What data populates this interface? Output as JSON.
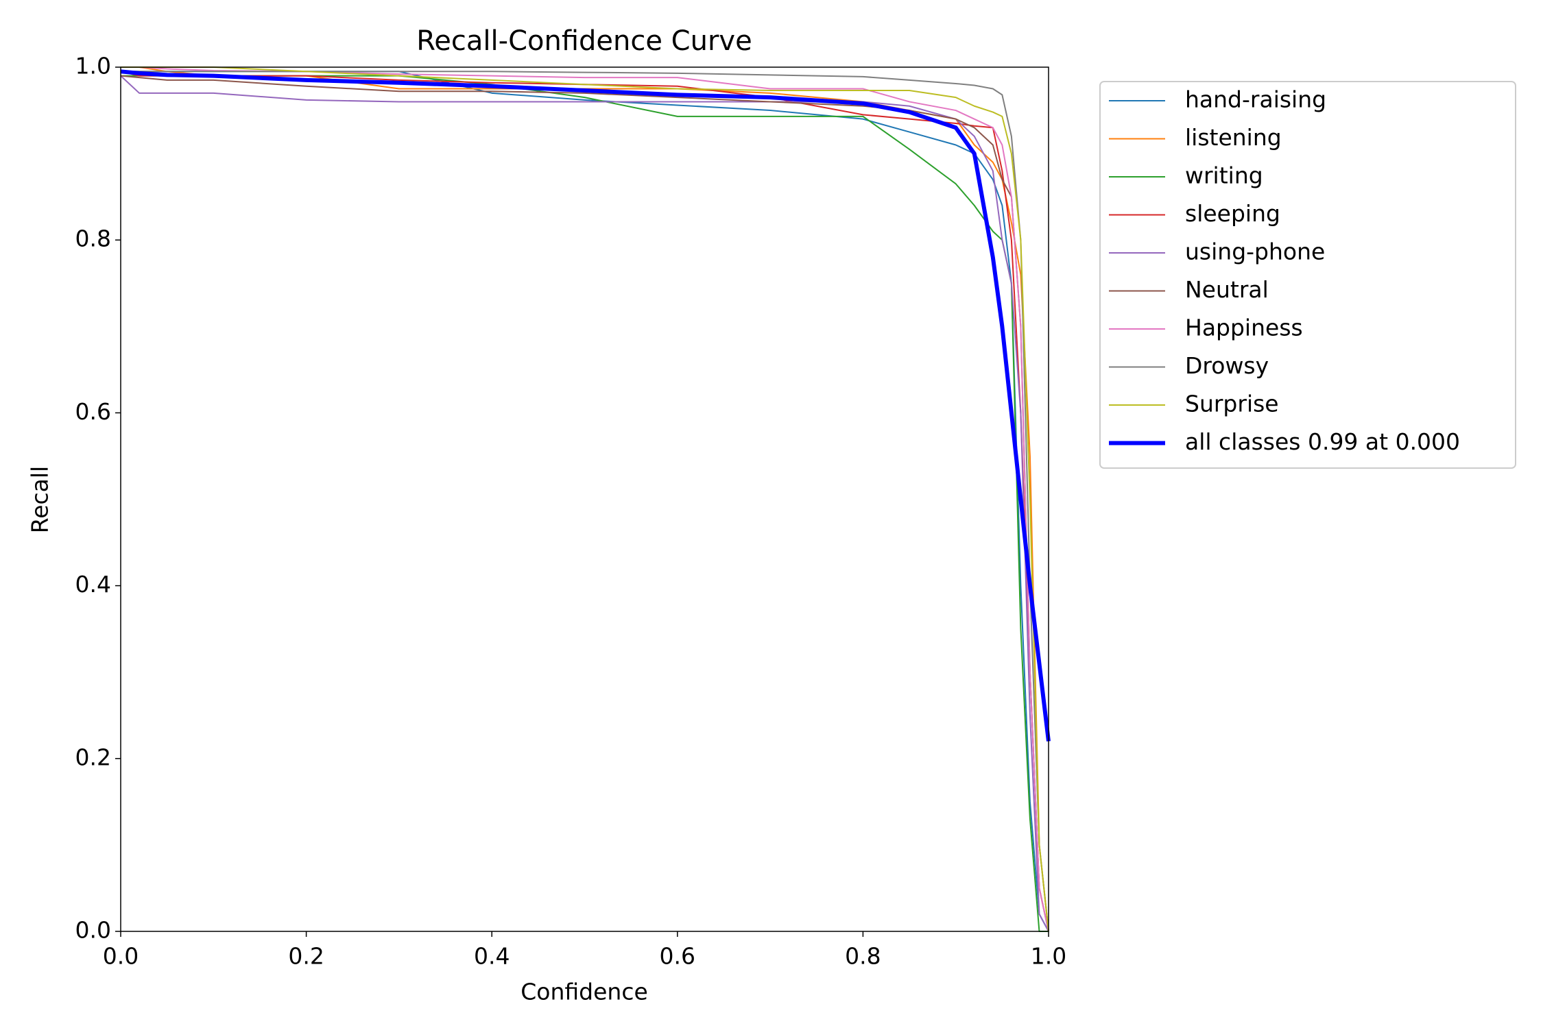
{
  "chart_data": {
    "type": "line",
    "title": "Recall-Confidence Curve",
    "x_label": "Confidence",
    "y_label": "Recall",
    "x": [
      0,
      0.02,
      0.05,
      0.1,
      0.2,
      0.3,
      0.4,
      0.5,
      0.6,
      0.7,
      0.8,
      0.85,
      0.9,
      0.92,
      0.94,
      0.95,
      0.96,
      0.97,
      0.98,
      0.99,
      1.0
    ],
    "series": [
      {
        "name": "hand-raising",
        "color": "#1f77b4",
        "width": 1,
        "values": [
          0.995,
          0.995,
          0.995,
          0.995,
          0.995,
          0.995,
          0.97,
          0.962,
          0.956,
          0.95,
          0.94,
          0.925,
          0.91,
          0.9,
          0.87,
          0.84,
          0.75,
          0.4,
          0.15,
          0.02,
          0
        ]
      },
      {
        "name": "listening",
        "color": "#ff7f0e",
        "width": 1,
        "values": [
          1,
          1,
          0.995,
          0.99,
          0.99,
          0.975,
          0.975,
          0.975,
          0.975,
          0.97,
          0.96,
          0.95,
          0.94,
          0.91,
          0.89,
          0.87,
          0.82,
          0.76,
          0.55,
          0.1,
          0
        ]
      },
      {
        "name": "writing",
        "color": "#2ca02c",
        "width": 1,
        "values": [
          0.99,
          0.99,
          0.99,
          0.99,
          0.99,
          0.99,
          0.98,
          0.965,
          0.943,
          0.943,
          0.943,
          0.905,
          0.865,
          0.84,
          0.81,
          0.8,
          0.75,
          0.35,
          0.13,
          0,
          0
        ]
      },
      {
        "name": "sleeping",
        "color": "#d62728",
        "width": 1,
        "values": [
          0.995,
          0.99,
          0.99,
          0.99,
          0.99,
          0.985,
          0.982,
          0.98,
          0.978,
          0.965,
          0.945,
          0.94,
          0.935,
          0.932,
          0.93,
          0.88,
          0.8,
          0.6,
          0.3,
          0.05,
          0
        ]
      },
      {
        "name": "using-phone",
        "color": "#9467bd",
        "width": 1,
        "values": [
          0.99,
          0.97,
          0.97,
          0.97,
          0.962,
          0.96,
          0.96,
          0.96,
          0.96,
          0.96,
          0.96,
          0.955,
          0.94,
          0.92,
          0.88,
          0.8,
          0.75,
          0.6,
          0.25,
          0.02,
          0
        ]
      },
      {
        "name": "Neutral",
        "color": "#8c564b",
        "width": 1,
        "values": [
          0.99,
          0.988,
          0.985,
          0.985,
          0.978,
          0.972,
          0.972,
          0.97,
          0.965,
          0.96,
          0.955,
          0.95,
          0.94,
          0.93,
          0.91,
          0.87,
          0.85,
          0.7,
          0.3,
          0.05,
          0
        ]
      },
      {
        "name": "Happiness",
        "color": "#e377c2",
        "width": 1,
        "values": [
          1,
          1,
          0.998,
          0.996,
          0.995,
          0.992,
          0.99,
          0.988,
          0.988,
          0.975,
          0.975,
          0.96,
          0.95,
          0.94,
          0.93,
          0.91,
          0.85,
          0.7,
          0.3,
          0.05,
          0
        ]
      },
      {
        "name": "Drowsy",
        "color": "#7f7f7f",
        "width": 1,
        "values": [
          0.995,
          0.995,
          0.995,
          0.995,
          0.995,
          0.995,
          0.995,
          0.994,
          0.993,
          0.991,
          0.989,
          0.985,
          0.981,
          0.979,
          0.975,
          0.968,
          0.92,
          0.8,
          0.4,
          0.1,
          0
        ]
      },
      {
        "name": "Surprise",
        "color": "#bcbd22",
        "width": 1,
        "values": [
          1,
          1,
          1,
          1,
          0.995,
          0.99,
          0.985,
          0.98,
          0.975,
          0.973,
          0.973,
          0.973,
          0.965,
          0.955,
          0.948,
          0.943,
          0.9,
          0.8,
          0.5,
          0.1,
          0
        ]
      },
      {
        "name": "all classes 0.99 at 0.000",
        "color": "#0000ff",
        "width": 3,
        "values": [
          0.995,
          0.993,
          0.991,
          0.99,
          0.985,
          0.982,
          0.978,
          0.973,
          0.968,
          0.965,
          0.958,
          0.948,
          0.93,
          0.9,
          0.78,
          0.7,
          0.6,
          0.5,
          0.4,
          0.31,
          0.22
        ]
      }
    ],
    "xlim": [
      0,
      1
    ],
    "ylim": [
      0,
      1
    ],
    "xticks": [
      {
        "value": 0,
        "label": "0.0"
      },
      {
        "value": 0.2,
        "label": "0.2"
      },
      {
        "value": 0.4,
        "label": "0.4"
      },
      {
        "value": 0.6,
        "label": "0.6"
      },
      {
        "value": 0.8,
        "label": "0.8"
      },
      {
        "value": 1,
        "label": "1.0"
      }
    ],
    "yticks": [
      {
        "value": 0,
        "label": "0.0"
      },
      {
        "value": 0.2,
        "label": "0.2"
      },
      {
        "value": 0.4,
        "label": "0.4"
      },
      {
        "value": 0.6,
        "label": "0.6"
      },
      {
        "value": 0.8,
        "label": "0.8"
      },
      {
        "value": 1,
        "label": "1.0"
      }
    ]
  }
}
